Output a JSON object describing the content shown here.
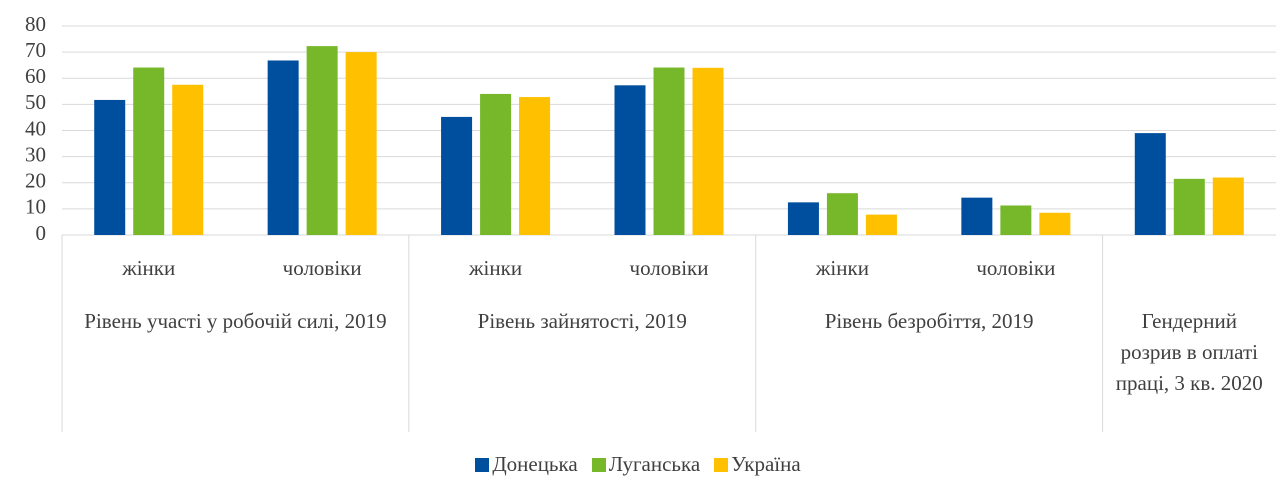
{
  "chart_data": {
    "type": "bar",
    "categories": [
      "жінки",
      "чоловіки",
      "жінки",
      "чоловіки",
      "жінки",
      "чоловіки",
      null
    ],
    "groups": [
      {
        "label": "Рівень участі у робочій силі, 2019",
        "span": 2
      },
      {
        "label": "Рівень зайнятості, 2019",
        "span": 2
      },
      {
        "label": "Рівень безробіття, 2019",
        "span": 2
      },
      {
        "label": "Гендерний розрив в оплаті праці, 3 кв. 2020",
        "span": 1
      }
    ],
    "series": [
      {
        "name": "Донецька",
        "color": "#004f9e",
        "values": [
          51.7,
          66.8,
          45.2,
          57.3,
          12.5,
          14.3,
          39
        ]
      },
      {
        "name": "Луганська",
        "color": "#76b82a",
        "values": [
          64.1,
          72.3,
          54,
          64.1,
          16,
          11.3,
          21.5
        ]
      },
      {
        "name": "Україна",
        "color": "#ffc000",
        "values": [
          57.5,
          70,
          52.8,
          64,
          7.8,
          8.5,
          22
        ]
      }
    ],
    "ylim": [
      0,
      80
    ],
    "yticks": [
      0,
      10,
      20,
      30,
      40,
      50,
      60,
      70,
      80
    ],
    "grid": true
  }
}
